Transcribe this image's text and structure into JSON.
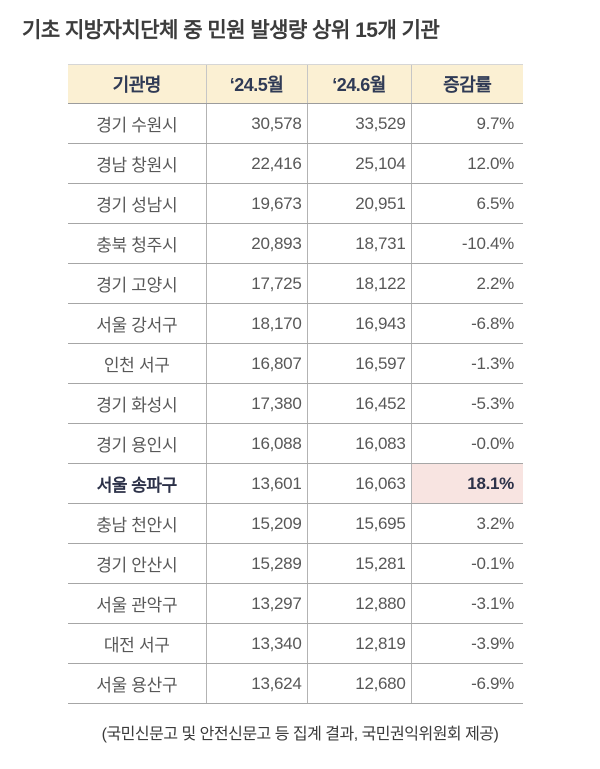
{
  "title": "기초 지방자치단체 중 민원 발생량 상위 15개 기관",
  "table": {
    "headers": [
      "기관명",
      "‘24.5월",
      "‘24.6월",
      "증감률"
    ],
    "rows": [
      {
        "name": "경기 수원시",
        "may": "30,578",
        "jun": "33,529",
        "change": "9.7%",
        "highlight": false
      },
      {
        "name": "경남 창원시",
        "may": "22,416",
        "jun": "25,104",
        "change": "12.0%",
        "highlight": false
      },
      {
        "name": "경기 성남시",
        "may": "19,673",
        "jun": "20,951",
        "change": "6.5%",
        "highlight": false
      },
      {
        "name": "충북 청주시",
        "may": "20,893",
        "jun": "18,731",
        "change": "-10.4%",
        "highlight": false
      },
      {
        "name": "경기 고양시",
        "may": "17,725",
        "jun": "18,122",
        "change": "2.2%",
        "highlight": false
      },
      {
        "name": "서울 강서구",
        "may": "18,170",
        "jun": "16,943",
        "change": "-6.8%",
        "highlight": false
      },
      {
        "name": "인천 서구",
        "may": "16,807",
        "jun": "16,597",
        "change": "-1.3%",
        "highlight": false
      },
      {
        "name": "경기 화성시",
        "may": "17,380",
        "jun": "16,452",
        "change": "-5.3%",
        "highlight": false
      },
      {
        "name": "경기 용인시",
        "may": "16,088",
        "jun": "16,083",
        "change": "-0.0%",
        "highlight": false
      },
      {
        "name": "서울 송파구",
        "may": "13,601",
        "jun": "16,063",
        "change": "18.1%",
        "highlight": true
      },
      {
        "name": "충남 천안시",
        "may": "15,209",
        "jun": "15,695",
        "change": "3.2%",
        "highlight": false
      },
      {
        "name": "경기 안산시",
        "may": "15,289",
        "jun": "15,281",
        "change": "-0.1%",
        "highlight": false
      },
      {
        "name": "서울 관악구",
        "may": "13,297",
        "jun": "12,880",
        "change": "-3.1%",
        "highlight": false
      },
      {
        "name": "대전 서구",
        "may": "13,340",
        "jun": "12,819",
        "change": "-3.9%",
        "highlight": false
      },
      {
        "name": "서울 용산구",
        "may": "13,624",
        "jun": "12,680",
        "change": "-6.9%",
        "highlight": false
      }
    ]
  },
  "caption": "(국민신문고 및 안전신문고 등 집계 결과, 국민권익위원회 제공)",
  "colors": {
    "header_bg": "#fbf0d3",
    "header_text": "#2f3a55",
    "highlight_bg": "#f8e4e1",
    "highlight_text": "#2c3148",
    "body_text": "#585858",
    "grid_line": "#a6a6a6"
  },
  "chart_data": {
    "type": "table",
    "title": "기초 지방자치단체 중 민원 발생량 상위 15개 기관",
    "columns": [
      "기관명",
      "‘24.5월",
      "‘24.6월",
      "증감률"
    ],
    "rows": [
      [
        "경기 수원시",
        30578,
        33529,
        "9.7%"
      ],
      [
        "경남 창원시",
        22416,
        25104,
        "12.0%"
      ],
      [
        "경기 성남시",
        19673,
        20951,
        "6.5%"
      ],
      [
        "충북 청주시",
        20893,
        18731,
        "-10.4%"
      ],
      [
        "경기 고양시",
        17725,
        18122,
        "2.2%"
      ],
      [
        "서울 강서구",
        18170,
        16943,
        "-6.8%"
      ],
      [
        "인천 서구",
        16807,
        16597,
        "-1.3%"
      ],
      [
        "경기 화성시",
        17380,
        16452,
        "-5.3%"
      ],
      [
        "경기 용인시",
        16088,
        16083,
        "-0.0%"
      ],
      [
        "서울 송파구",
        13601,
        16063,
        "18.1%"
      ],
      [
        "충남 천안시",
        15209,
        15695,
        "3.2%"
      ],
      [
        "경기 안산시",
        15289,
        15281,
        "-0.1%"
      ],
      [
        "서울 관악구",
        13297,
        12880,
        "-3.1%"
      ],
      [
        "대전 서구",
        13340,
        12819,
        "-3.9%"
      ],
      [
        "서울 용산구",
        13624,
        12680,
        "-6.9%"
      ]
    ],
    "highlighted_row": "서울 송파구",
    "source_note": "(국민신문고 및 안전신문고 등 집계 결과, 국민권익위원회 제공)"
  }
}
